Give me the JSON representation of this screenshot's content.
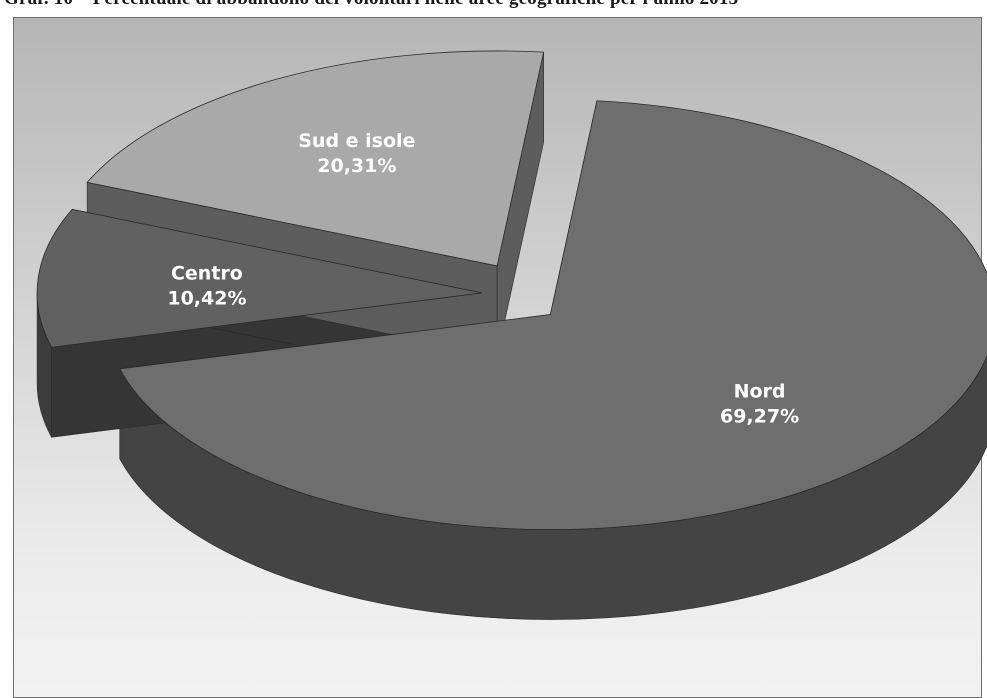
{
  "chart_data": {
    "type": "pie",
    "title": "Graf. 10 – Percentuale di abbandono dei volontari nelle aree geografiche per l'anno 2013",
    "slices": [
      {
        "name": "Nord",
        "value": 69.27,
        "label": "69,27%",
        "color": "#6e6e6e"
      },
      {
        "name": "Centro",
        "value": 10.42,
        "label": "10,42%",
        "color": "#616161"
      },
      {
        "name": "Sud e isole",
        "value": 20.31,
        "label": "20,31%",
        "color": "#a9a9a9"
      }
    ]
  }
}
